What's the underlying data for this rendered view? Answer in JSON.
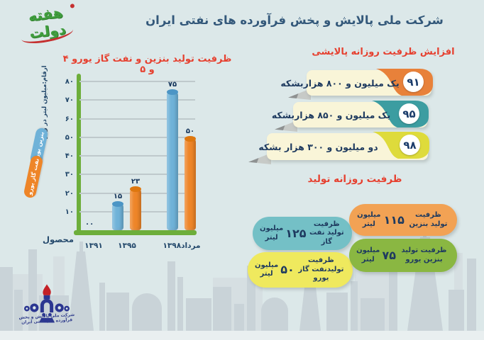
{
  "title": "شرکت ملی پالایش و پخش فرآورده های نفتی ایران",
  "logos": {
    "hafte_dolat": "هفته دولت",
    "nioc_caption": "شرکت ملی پالایش و پخش فرآورده های نفتی ایران"
  },
  "colors": {
    "background": "#DCE8E9",
    "title_navy": "#33587A",
    "header_red": "#E6402F",
    "axis_green": "#6DAE3B",
    "ribbon_cream": "#F9F5D8",
    "silhouette_gray": "#C9D3D8"
  },
  "chart_data": {
    "type": "bar",
    "title": "ظرفیت تولید بنزین و نفت گاز یورو ۴ و ۵",
    "ylabel": "ارقام:میلیون لیتر در روز",
    "xlabel": "محصول",
    "categories": [
      "۱۳۹۱",
      "۱۳۹۵",
      "مرداد۱۳۹۸"
    ],
    "series": [
      {
        "name": "بنزین یورو",
        "color": "#6FB2D8",
        "top_color": "#4C95C5",
        "values": [
          0,
          15,
          75
        ],
        "value_labels": [
          "۰",
          "۱۵",
          "۷۵"
        ]
      },
      {
        "name": "نفت گاز یورو",
        "color": "#EE8528",
        "top_color": "#DE770F",
        "values": [
          0,
          23,
          50
        ],
        "value_labels": [
          "۰",
          "۲۳",
          "۵۰"
        ]
      }
    ],
    "ylim": [
      0,
      80
    ],
    "yticks": [
      {
        "value": 80,
        "label": "۸۰"
      },
      {
        "value": 70,
        "label": "۷۰"
      },
      {
        "value": 60,
        "label": "۶۰"
      },
      {
        "value": 50,
        "label": "۵۰"
      },
      {
        "value": 40,
        "label": "۴۰"
      },
      {
        "value": 30,
        "label": "۳۰"
      },
      {
        "value": 20,
        "label": "۲۰"
      },
      {
        "value": 10,
        "label": "۱۰"
      }
    ],
    "zero_label": "۰۰",
    "grid": true,
    "legend_position": "left"
  },
  "refining": {
    "header": "افزایش ظرفیت روزانه پالایشی",
    "items": [
      {
        "year": "۹۱",
        "text": "یک میلیون و ۸۰۰ هزاربشکه",
        "color": "#E8813A"
      },
      {
        "year": "۹۵",
        "text": "یک میلیون و ۸۵۰ هزاربشکه",
        "color": "#3C9DA1"
      },
      {
        "year": "۹۸",
        "text": "دو میلیون و ۳۰۰ هزار بشکه",
        "color": "#DEDB3B"
      }
    ]
  },
  "production": {
    "header": "ظرفیت روزانه تولید",
    "items": [
      {
        "label": "ظرفیت تولید بنزین",
        "number": "۱۱۵",
        "unit": "میلیون لیتر",
        "color": "#F2A254"
      },
      {
        "label": "ظرفیت تولید نفت گاز",
        "number": "۱۲۵",
        "unit": "میلیون لیتر",
        "color": "#74C0C6"
      },
      {
        "label": "ظرفیت تولید بنزین یورو",
        "number": "۷۵",
        "unit": "میلیون لیتر",
        "color": "#8AB742"
      },
      {
        "label": "ظرفیت تولیدنفت گاز یورو",
        "number": "۵۰",
        "unit": "میلیون لیتر",
        "color": "#EFE95E"
      }
    ]
  }
}
